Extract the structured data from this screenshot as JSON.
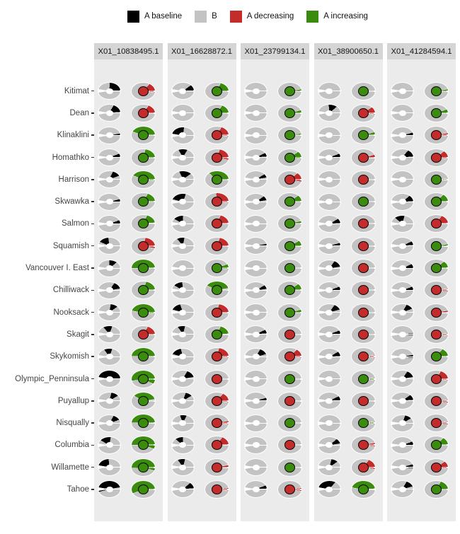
{
  "legend": {
    "items": [
      {
        "label": "A baseline",
        "color": "#000000"
      },
      {
        "label": "B",
        "color": "#c3c3c3"
      },
      {
        "label": "A decreasing",
        "color": "#c42b2b"
      },
      {
        "label": "A increasing",
        "color": "#3b8c0e"
      }
    ]
  },
  "colors": {
    "pie_gray": "#c3c3c3",
    "black": "#000000",
    "red": "#c42b2b",
    "green": "#3b8c0e",
    "panel_bg": "#ebebeb",
    "strip_bg": "#d5d5d5"
  },
  "chart_data": {
    "type": "pie",
    "layout": "19 rows (populations) x 5 facet columns (loci); each cell holds two donut glyphs: left = black 'A baseline' share vs gray 'B', right = colored wedge ('A decreasing' red / 'A increasing' green) vs gray 'B' with a matching colored center dot",
    "cell_format": [
      "left_black_start_deg",
      "left_black_sweep_deg",
      "right_color(r=decreasing,g=increasing)",
      "right_wedge_start_deg",
      "right_wedge_sweep_deg"
    ],
    "angle_convention": "degrees clockwise from 12 o'clock; fraction = sweep/360",
    "columns": [
      "X01_10838495.1",
      "X01_16628872.1",
      "X01_23799134.1",
      "X01_38900650.1",
      "X01_41284594.1"
    ],
    "rows": [
      "Kitimat",
      "Dean",
      "Klinaklini",
      "Homathko",
      "Harrison",
      "Skwawka",
      "Salmon",
      "Squamish",
      "Vancouver I. East",
      "Chilliwack",
      "Nooksack",
      "Skagit",
      "Skykomish",
      "Olympic_Penninsula",
      "Puyallup",
      "Nisqually",
      "Columbia",
      "Willamette",
      "Tahoe"
    ],
    "grid": [
      [
        [
          3,
          85,
          "r",
          40,
          55
        ],
        [
          55,
          33,
          "g",
          25,
          65
        ],
        [
          0,
          0,
          "g",
          80,
          10
        ],
        [
          0,
          0,
          "g",
          0,
          0
        ],
        [
          0,
          0,
          "g",
          80,
          10
        ]
      ],
      [
        [
          30,
          55,
          "r",
          35,
          55
        ],
        [
          0,
          0,
          "g",
          35,
          55
        ],
        [
          0,
          0,
          "g",
          75,
          15
        ],
        [
          355,
          55,
          "r",
          55,
          40
        ],
        [
          0,
          0,
          "g",
          70,
          20
        ]
      ],
      [
        [
          80,
          10,
          "g",
          288,
          162
        ],
        [
          263,
          105,
          "r",
          30,
          65
        ],
        [
          0,
          0,
          "g",
          82,
          8
        ],
        [
          0,
          0,
          "g",
          75,
          15
        ],
        [
          75,
          15,
          "r",
          80,
          15
        ]
      ],
      [
        [
          70,
          18,
          "g",
          15,
          75
        ],
        [
          330,
          60,
          "r",
          20,
          80
        ],
        [
          65,
          20,
          "g",
          55,
          40
        ],
        [
          70,
          18,
          "r",
          75,
          17
        ],
        [
          40,
          45,
          "r",
          50,
          45
        ]
      ],
      [
        [
          25,
          45,
          "g",
          293,
          162
        ],
        [
          335,
          80,
          "g",
          310,
          140
        ],
        [
          60,
          20,
          "r",
          50,
          50
        ],
        [
          0,
          0,
          "r",
          0,
          0
        ],
        [
          0,
          0,
          "g",
          85,
          7
        ]
      ],
      [
        [
          75,
          15,
          "g",
          30,
          60
        ],
        [
          285,
          95,
          "r",
          355,
          100
        ],
        [
          55,
          25,
          "g",
          55,
          35
        ],
        [
          0,
          0,
          "g",
          0,
          0
        ],
        [
          50,
          35,
          "g",
          45,
          45
        ]
      ],
      [
        [
          70,
          18,
          "g",
          25,
          60
        ],
        [
          300,
          60,
          "r",
          25,
          65
        ],
        [
          0,
          0,
          "g",
          78,
          12
        ],
        [
          60,
          25,
          "r",
          0,
          0
        ],
        [
          310,
          65,
          "r",
          35,
          55
        ]
      ],
      [
        [
          293,
          60,
          "r",
          15,
          85
        ],
        [
          320,
          50,
          "r",
          20,
          70
        ],
        [
          80,
          10,
          "g",
          60,
          32
        ],
        [
          75,
          15,
          "r",
          0,
          0
        ],
        [
          65,
          20,
          "g",
          80,
          12
        ]
      ],
      [
        [
          0,
          50,
          "g",
          270,
          180
        ],
        [
          0,
          0,
          "g",
          70,
          25
        ],
        [
          0,
          0,
          "g",
          0,
          0
        ],
        [
          35,
          45,
          "r",
          0,
          0
        ],
        [
          65,
          23,
          "g",
          50,
          40
        ]
      ],
      [
        [
          35,
          45,
          "g",
          20,
          68
        ],
        [
          300,
          55,
          "g",
          295,
          145
        ],
        [
          60,
          22,
          "g",
          55,
          35
        ],
        [
          70,
          20,
          "r",
          0,
          0
        ],
        [
          70,
          18,
          "r",
          85,
          12
        ]
      ],
      [
        [
          10,
          45,
          "g",
          280,
          175
        ],
        [
          285,
          55,
          "r",
          15,
          75
        ],
        [
          0,
          0,
          "g",
          75,
          15
        ],
        [
          35,
          40,
          "r",
          0,
          0
        ],
        [
          30,
          40,
          "r",
          80,
          13
        ]
      ],
      [
        [
          320,
          60,
          "r",
          30,
          60
        ],
        [
          325,
          50,
          "g",
          25,
          60
        ],
        [
          65,
          20,
          "r",
          0,
          0
        ],
        [
          70,
          20,
          "r",
          0,
          0
        ],
        [
          85,
          10,
          "r",
          85,
          10
        ]
      ],
      [
        [
          325,
          55,
          "g",
          272,
          178
        ],
        [
          285,
          60,
          "r",
          15,
          80
        ],
        [
          30,
          45,
          "r",
          45,
          50
        ],
        [
          60,
          25,
          "r",
          85,
          10
        ],
        [
          80,
          15,
          "g",
          40,
          50
        ]
      ],
      [
        [
          270,
          178,
          "g",
          262,
          213
        ],
        [
          30,
          50,
          "r",
          0,
          0
        ],
        [
          0,
          0,
          "g",
          0,
          0
        ],
        [
          0,
          0,
          "g",
          85,
          10
        ],
        [
          35,
          45,
          "r",
          30,
          65
        ]
      ],
      [
        [
          15,
          45,
          "g",
          300,
          140
        ],
        [
          20,
          40,
          "r",
          40,
          55
        ],
        [
          75,
          17,
          "r",
          0,
          0
        ],
        [
          65,
          23,
          "r",
          0,
          0
        ],
        [
          55,
          30,
          "r",
          85,
          12
        ]
      ],
      [
        [
          30,
          40,
          "g",
          272,
          180
        ],
        [
          340,
          45,
          "r",
          80,
          15
        ],
        [
          0,
          0,
          "g",
          0,
          0
        ],
        [
          0,
          0,
          "g",
          85,
          10
        ],
        [
          20,
          40,
          "r",
          85,
          12
        ]
      ],
      [
        [
          300,
          70,
          "g",
          270,
          200
        ],
        [
          310,
          50,
          "r",
          35,
          57
        ],
        [
          0,
          0,
          "r",
          0,
          0
        ],
        [
          50,
          30,
          "r",
          80,
          17
        ],
        [
          70,
          22,
          "g",
          45,
          45
        ]
      ],
      [
        [
          280,
          75,
          "g",
          268,
          197
        ],
        [
          325,
          50,
          "r",
          78,
          14
        ],
        [
          0,
          0,
          "g",
          0,
          0
        ],
        [
          15,
          40,
          "r",
          35,
          62
        ],
        [
          75,
          20,
          "r",
          55,
          40
        ]
      ],
      [
        [
          255,
          185,
          "g",
          250,
          200
        ],
        [
          50,
          35,
          "r",
          83,
          12
        ],
        [
          70,
          22,
          "r",
          83,
          14
        ],
        [
          275,
          125,
          "g",
          280,
          165
        ],
        [
          30,
          45,
          "g",
          30,
          60
        ]
      ]
    ]
  }
}
